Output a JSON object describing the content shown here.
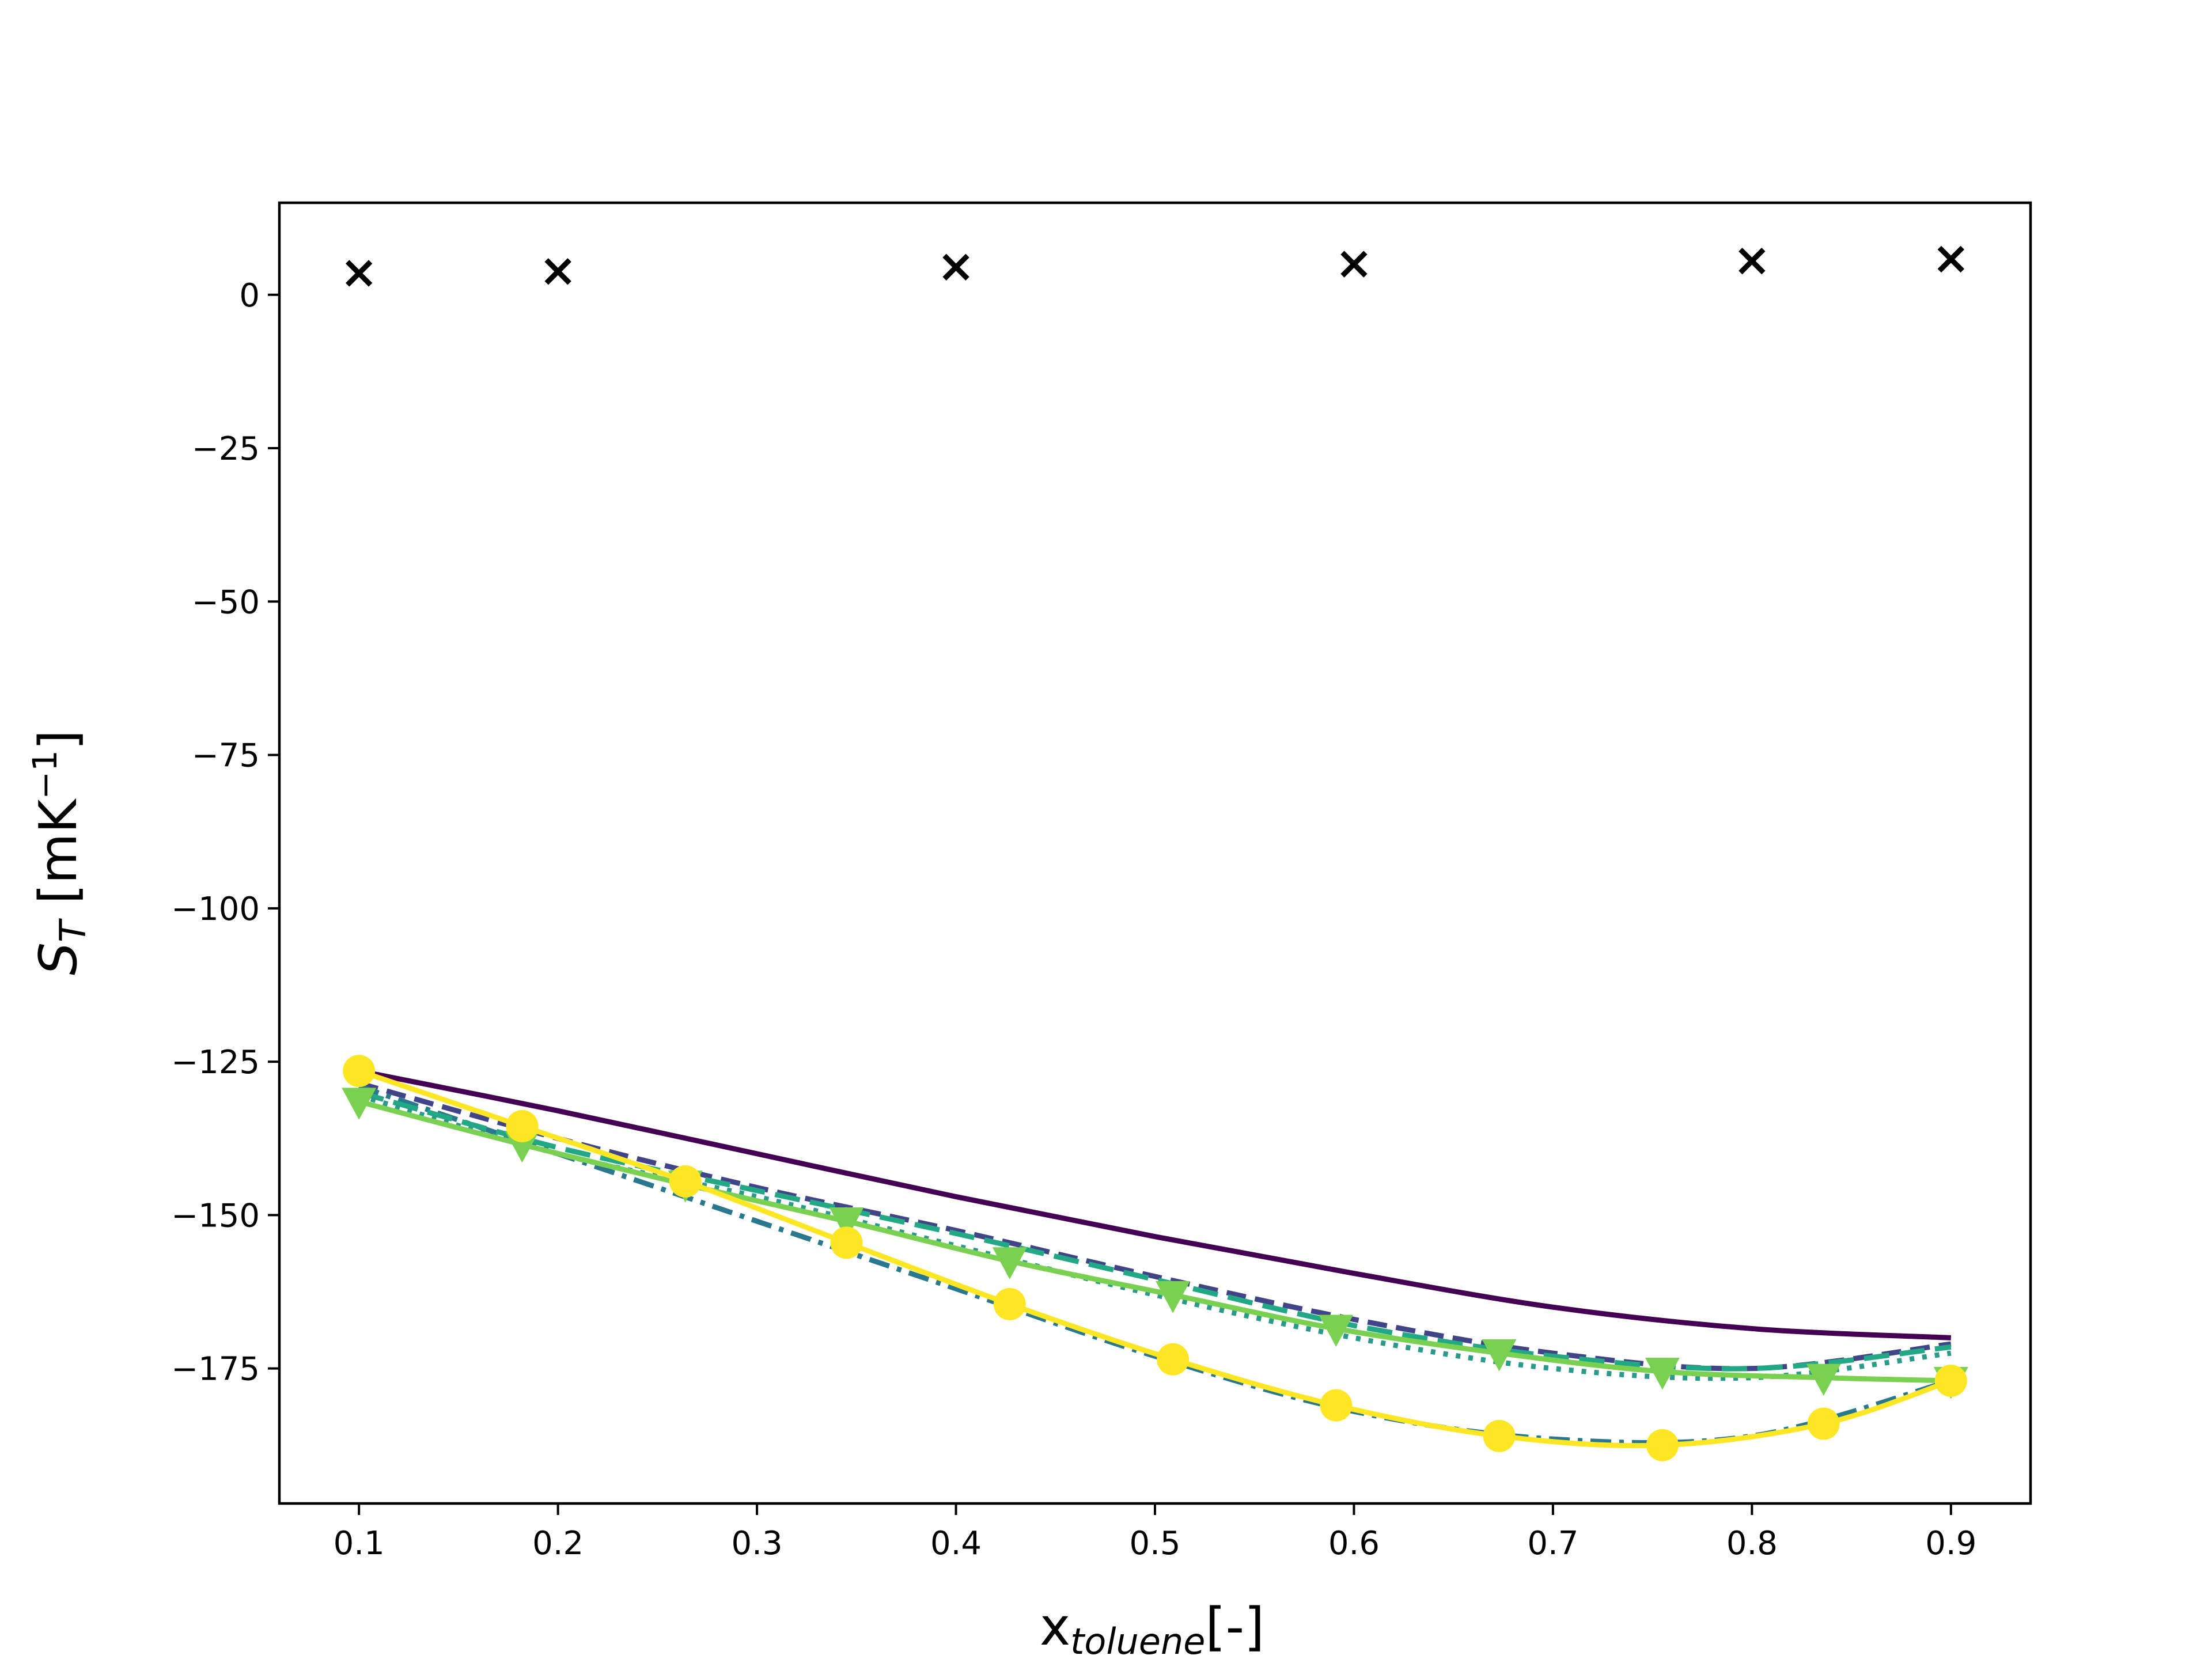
{
  "chart_data": {
    "type": "line",
    "title": "",
    "xlabel": {
      "main": "x",
      "subscript": "toluene",
      "suffix": "[-]"
    },
    "ylabel": {
      "main": "S",
      "subscript": "T",
      "unit_prefix": " [mK",
      "unit_sup": "−1",
      "unit_suffix": "]"
    },
    "xlim": [
      0.06,
      0.94
    ],
    "ylim": [
      -197,
      15
    ],
    "grid": false,
    "legend": "none",
    "xticks": [
      0.1,
      0.2,
      0.3,
      0.4,
      0.5,
      0.6,
      0.7,
      0.8,
      0.9
    ],
    "xtick_labels": [
      "0.1",
      "0.2",
      "0.3",
      "0.4",
      "0.5",
      "0.6",
      "0.7",
      "0.8",
      "0.9"
    ],
    "yticks": [
      0,
      -25,
      -50,
      -75,
      -100,
      -125,
      -150,
      -175
    ],
    "ytick_labels": [
      "0",
      "−25",
      "−50",
      "−75",
      "−100",
      "−125",
      "−150",
      "−175"
    ],
    "series": [
      {
        "color": "#440154",
        "line": "solid",
        "marker": "none",
        "x": [
          0.1,
          0.2,
          0.3,
          0.4,
          0.5,
          0.6,
          0.7,
          0.8,
          0.9
        ],
        "y": [
          -126.5,
          -133,
          -140,
          -147,
          -153.5,
          -159.5,
          -165,
          -168.5,
          -170
        ]
      },
      {
        "color": "#414487",
        "line": "dashed",
        "marker": "none",
        "x": [
          0.1,
          0.2,
          0.3,
          0.4,
          0.5,
          0.6,
          0.7,
          0.8,
          0.9
        ],
        "y": [
          -128.5,
          -137.5,
          -145.5,
          -152.5,
          -160,
          -167,
          -172.5,
          -175,
          -171
        ]
      },
      {
        "color": "#2a788e",
        "line": "dashdot",
        "marker": "none",
        "x": [
          0.1,
          0.2,
          0.3,
          0.4,
          0.5,
          0.6,
          0.7,
          0.8,
          0.9
        ],
        "y": [
          -129,
          -140,
          -151,
          -162,
          -173,
          -182,
          -186.5,
          -186,
          -177
        ]
      },
      {
        "color": "#22a884",
        "line": "longdash",
        "marker": "none",
        "x": [
          0.1,
          0.2,
          0.3,
          0.4,
          0.5,
          0.6,
          0.7,
          0.8,
          0.9
        ],
        "y": [
          -130,
          -139,
          -146,
          -153,
          -160.5,
          -168,
          -173,
          -175,
          -171.5
        ]
      },
      {
        "color": "#2a9a8a",
        "line": "dotted",
        "marker": "none",
        "x": [
          0.1,
          0.2,
          0.3,
          0.4,
          0.5,
          0.6,
          0.7,
          0.8,
          0.9
        ],
        "y": [
          -130.5,
          -140,
          -147,
          -155,
          -163,
          -170,
          -175,
          -176.5,
          -172.5
        ]
      },
      {
        "color": "#7ad151",
        "line": "solid",
        "marker": "triangle-down",
        "x": [
          0.1,
          0.182,
          0.264,
          0.345,
          0.427,
          0.509,
          0.591,
          0.673,
          0.755,
          0.836,
          0.9
        ],
        "y": [
          -131.5,
          -138.5,
          -145,
          -151,
          -157.5,
          -163,
          -168.5,
          -172.5,
          -175.5,
          -176.5,
          -177
        ]
      },
      {
        "color": "#fde725",
        "line": "solid",
        "marker": "circle",
        "x": [
          0.1,
          0.182,
          0.264,
          0.345,
          0.427,
          0.509,
          0.591,
          0.673,
          0.755,
          0.836,
          0.9
        ],
        "y": [
          -126.5,
          -135.5,
          -144.5,
          -154.5,
          -164.5,
          -173.5,
          -181,
          -186,
          -187.5,
          -184,
          -177
        ]
      },
      {
        "color": "#000000",
        "line": "none",
        "marker": "x",
        "x": [
          0.1,
          0.2,
          0.4,
          0.6,
          0.8,
          0.9
        ],
        "y": [
          3.5,
          3.8,
          4.5,
          5,
          5.5,
          5.8
        ]
      }
    ]
  }
}
